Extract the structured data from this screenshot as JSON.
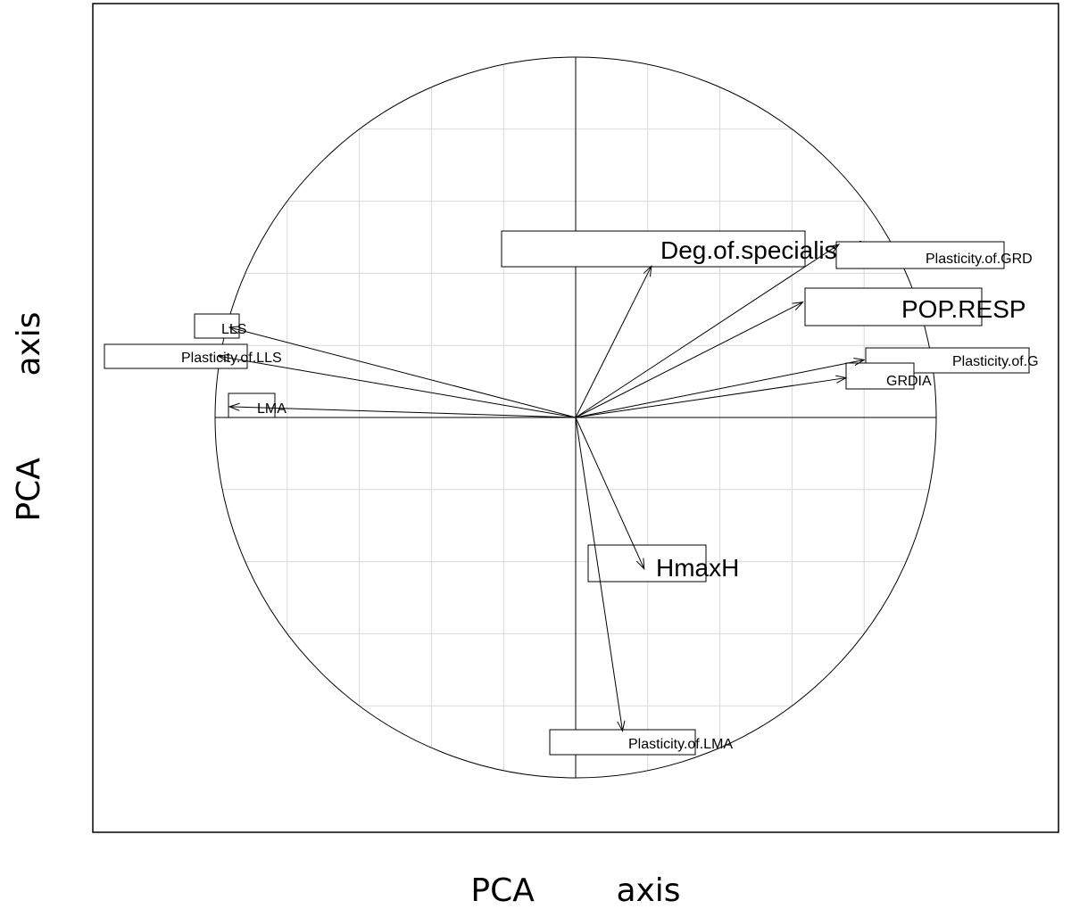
{
  "chart_data": {
    "type": "scatter",
    "subtype": "pca-correlation-circle",
    "title": "",
    "xlabel": "PCA        axis",
    "ylabel": "PCA        axis",
    "xlim": [
      -1.25,
      1.25
    ],
    "ylim": [
      -1.15,
      1.15
    ],
    "grid": true,
    "grid_step": 0.2,
    "unit_circle": true,
    "legend": "none",
    "series": [
      {
        "points": [
          {
            "label": "Deg.of.specialisation",
            "x": 0.21,
            "y": 0.42,
            "size": "large"
          },
          {
            "label": "Plasticity.of.GRD",
            "x": 0.73,
            "y": 0.48,
            "size": "small"
          },
          {
            "label": "POP.RESP",
            "x": 0.63,
            "y": 0.32,
            "size": "large"
          },
          {
            "label": "Plasticity.of.G",
            "x": 0.8,
            "y": 0.16,
            "size": "small"
          },
          {
            "label": "GRDIA",
            "x": 0.75,
            "y": 0.11,
            "size": "small"
          },
          {
            "label": "LLS",
            "x": -0.96,
            "y": 0.25,
            "size": "small"
          },
          {
            "label": "Plasticity.of.LLS",
            "x": -0.99,
            "y": 0.17,
            "size": "small"
          },
          {
            "label": "LMA",
            "x": -0.96,
            "y": 0.03,
            "size": "small"
          },
          {
            "label": "HmaxH",
            "x": 0.19,
            "y": -0.42,
            "size": "large"
          },
          {
            "label": "Plasticity.of.LMA",
            "x": 0.13,
            "y": -0.87,
            "size": "small"
          }
        ]
      }
    ]
  }
}
